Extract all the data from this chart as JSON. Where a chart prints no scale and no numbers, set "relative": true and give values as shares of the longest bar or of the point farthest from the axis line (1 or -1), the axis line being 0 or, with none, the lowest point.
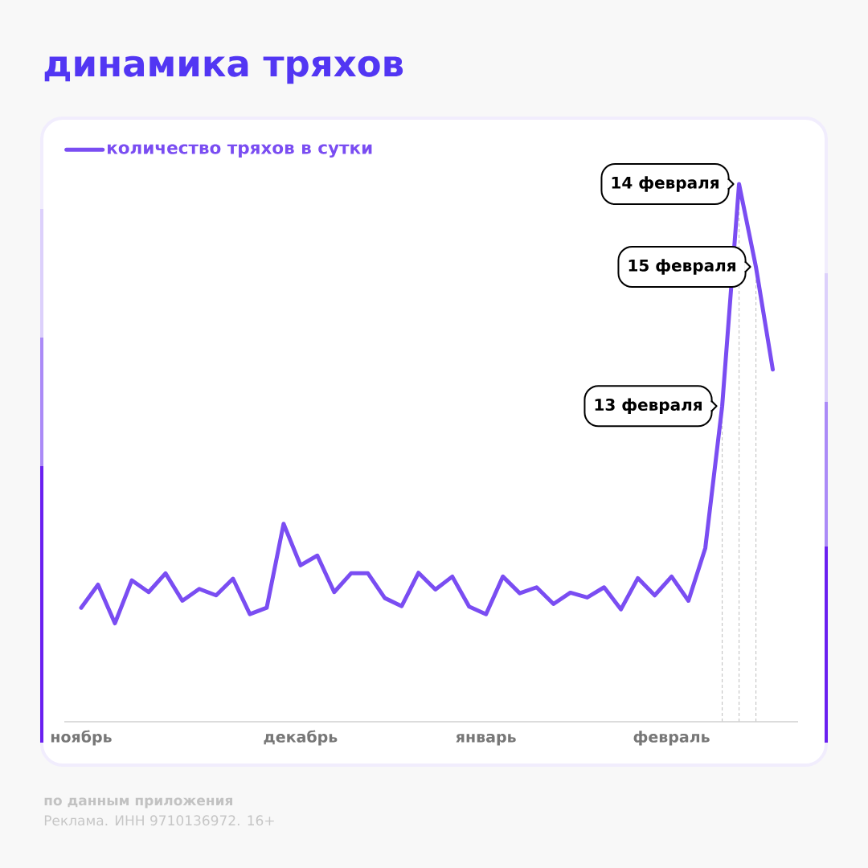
{
  "chart_data": {
    "type": "line",
    "title": "динамика тряхов",
    "relative": true,
    "categories": [
      "ноябрь",
      null,
      null,
      null,
      null,
      null,
      null,
      null,
      null,
      null,
      null,
      null,
      null,
      "декабрь",
      null,
      null,
      null,
      null,
      null,
      null,
      null,
      null,
      null,
      null,
      "январь",
      null,
      null,
      null,
      null,
      null,
      null,
      null,
      null,
      null,
      null,
      "февраль",
      null,
      null,
      null,
      null,
      null,
      null
    ],
    "series": [
      {
        "name": "количество тряхов в сутки",
        "color": "#7a4df2",
        "values": [
          0.212,
          0.255,
          0.183,
          0.263,
          0.241,
          0.276,
          0.225,
          0.247,
          0.235,
          0.266,
          0.2,
          0.212,
          0.368,
          0.291,
          0.309,
          0.241,
          0.276,
          0.276,
          0.23,
          0.215,
          0.277,
          0.246,
          0.27,
          0.214,
          0.2,
          0.27,
          0.239,
          0.25,
          0.219,
          0.24,
          0.231,
          0.25,
          0.209,
          0.267,
          0.235,
          0.27,
          0.225,
          0.323,
          0.587,
          1,
          0.846,
          0.655
        ]
      }
    ],
    "legend": "top left",
    "annotations": [
      "13 февраля",
      "14 февраля",
      "15 февраля",
      "по данным приложения",
      "Реклама. ИНН 9710136972. 16+"
    ]
  }
}
